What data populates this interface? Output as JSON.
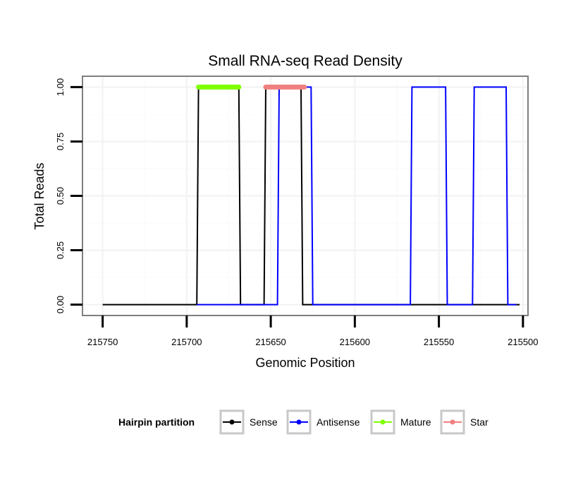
{
  "chart_data": {
    "type": "line",
    "title": "Small RNA-seq Read Density",
    "xlabel": "Genomic Position",
    "ylabel": "Total Reads",
    "x_reversed": true,
    "xlim": [
      215762,
      215497
    ],
    "ylim": [
      -0.05,
      1.05
    ],
    "x_ticks": [
      215750,
      215700,
      215650,
      215600,
      215550,
      215500
    ],
    "x_tick_labels": [
      "215750",
      "215700",
      "215650",
      "215600",
      "215550",
      "215500"
    ],
    "y_ticks": [
      0.0,
      0.25,
      0.5,
      0.75,
      1.0
    ],
    "y_tick_labels": [
      "0.00",
      "0.25",
      "0.50",
      "0.75",
      "1.00"
    ],
    "legend": {
      "title": "Hairpin partition",
      "position": "bottom",
      "entries": [
        {
          "name": "Sense",
          "color": "#000000"
        },
        {
          "name": "Antisense",
          "color": "#0000ff"
        },
        {
          "name": "Mature",
          "color": "#7fff00"
        },
        {
          "name": "Star",
          "color": "#f08080"
        }
      ]
    },
    "series": [
      {
        "name": "Sense",
        "color": "#000000",
        "points": [
          [
            215750,
            0
          ],
          [
            215694,
            0
          ],
          [
            215693,
            1
          ],
          [
            215669,
            1
          ],
          [
            215668,
            0
          ],
          [
            215654,
            0
          ],
          [
            215653,
            1
          ],
          [
            215632,
            1
          ],
          [
            215631,
            0
          ],
          [
            215502,
            0
          ]
        ]
      },
      {
        "name": "Antisense",
        "color": "#0000ff",
        "points": [
          [
            215694,
            0
          ],
          [
            215646,
            0
          ],
          [
            215645,
            1
          ],
          [
            215626,
            1
          ],
          [
            215625,
            0
          ],
          [
            215567,
            0
          ],
          [
            215566,
            1
          ],
          [
            215546,
            1
          ],
          [
            215545,
            0
          ],
          [
            215530,
            0
          ],
          [
            215529,
            1
          ],
          [
            215510,
            1
          ],
          [
            215509,
            0
          ],
          [
            215504,
            0
          ]
        ]
      },
      {
        "name": "Mature",
        "color": "#7fff00",
        "segment": [
          215693,
          215669
        ],
        "y": 1
      },
      {
        "name": "Star",
        "color": "#f08080",
        "segment": [
          215653,
          215630
        ],
        "y": 1
      }
    ]
  }
}
